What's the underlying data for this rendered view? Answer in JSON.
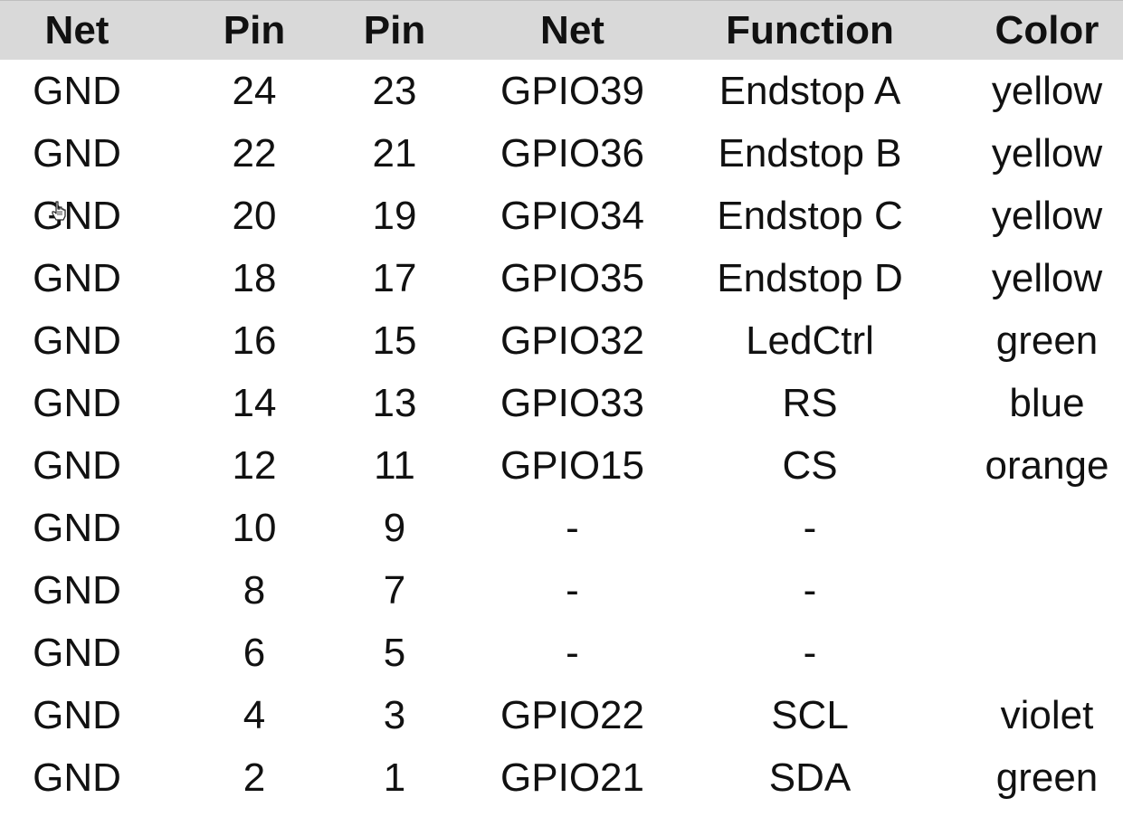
{
  "table": {
    "headers": [
      "Net",
      "Pin",
      "Pin",
      "Net",
      "Function",
      "Color"
    ],
    "rows": [
      [
        "GND",
        "24",
        "23",
        "GPIO39",
        "Endstop A",
        "yellow"
      ],
      [
        "GND",
        "22",
        "21",
        "GPIO36",
        "Endstop B",
        "yellow"
      ],
      [
        "GND",
        "20",
        "19",
        "GPIO34",
        "Endstop C",
        "yellow"
      ],
      [
        "GND",
        "18",
        "17",
        "GPIO35",
        "Endstop D",
        "yellow"
      ],
      [
        "GND",
        "16",
        "15",
        "GPIO32",
        "LedCtrl",
        "green"
      ],
      [
        "GND",
        "14",
        "13",
        "GPIO33",
        "RS",
        "blue"
      ],
      [
        "GND",
        "12",
        "11",
        "GPIO15",
        "CS",
        "orange"
      ],
      [
        "GND",
        "10",
        "9",
        "-",
        "-",
        ""
      ],
      [
        "GND",
        "8",
        "7",
        "-",
        "-",
        ""
      ],
      [
        "GND",
        "6",
        "5",
        "-",
        "-",
        ""
      ],
      [
        "GND",
        "4",
        "3",
        "GPIO22",
        "SCL",
        "violet"
      ],
      [
        "GND",
        "2",
        "1",
        "GPIO21",
        "SDA",
        "green"
      ]
    ]
  },
  "cursor": {
    "icon": "hand-pointer-icon"
  },
  "colors": {
    "header_background": "#d9d9d9",
    "text": "#111111"
  }
}
